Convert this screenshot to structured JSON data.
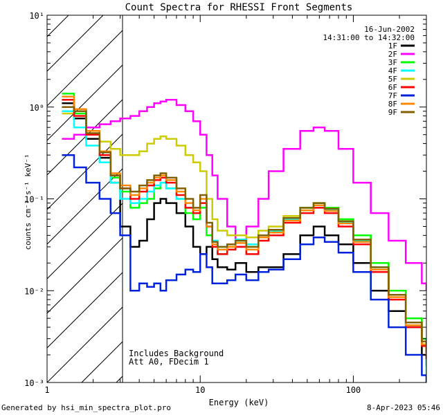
{
  "chart_data": {
    "type": "line",
    "title": "Count Spectra for RHESSI Front Segments",
    "xlabel": "Energy (keV)",
    "ylabel": "counts cm⁻² s⁻¹ keV⁻¹",
    "xscale": "log",
    "yscale": "log",
    "xlim": [
      1,
      300
    ],
    "ylim": [
      0.001,
      10
    ],
    "x_ticks": [
      1,
      10,
      100
    ],
    "x_tick_labels": [
      "1",
      "10",
      "100"
    ],
    "y_ticks": [
      0.001,
      0.01,
      0.1,
      1,
      10
    ],
    "y_tick_labels": [
      "10⁻³",
      "10⁻²",
      "10⁻¹",
      "10⁰",
      "10¹"
    ],
    "shaded_region": {
      "x_from": 1,
      "x_to": 3,
      "style": "hatched"
    },
    "legend_position": "top-right",
    "date": "16-Jun-2002",
    "time_range": "14:31:00 to 14:32:00",
    "annotations": [
      "Includes Background",
      "Att A0, FDecim 1"
    ],
    "series": [
      {
        "name": "1F",
        "color": "#000000",
        "x": [
          1.25,
          1.5,
          1.8,
          2.2,
          2.6,
          3,
          3.5,
          4,
          4.5,
          5,
          5.5,
          6,
          7,
          8,
          9,
          10,
          11,
          12,
          13,
          15,
          17,
          20,
          24,
          28,
          35,
          45,
          55,
          65,
          80,
          100,
          130,
          170,
          220,
          280,
          300
        ],
        "y": [
          1.1,
          0.75,
          0.45,
          0.28,
          0.15,
          0.05,
          0.03,
          0.035,
          0.06,
          0.09,
          0.1,
          0.09,
          0.07,
          0.05,
          0.03,
          0.025,
          0.03,
          0.022,
          0.018,
          0.017,
          0.02,
          0.016,
          0.018,
          0.018,
          0.025,
          0.04,
          0.05,
          0.04,
          0.032,
          0.02,
          0.01,
          0.006,
          0.004,
          0.002,
          0.0015
        ]
      },
      {
        "name": "2F",
        "color": "#ff00ff",
        "x": [
          1.25,
          1.5,
          1.8,
          2.2,
          2.6,
          3,
          3.5,
          4,
          4.5,
          5,
          5.5,
          6,
          7,
          8,
          9,
          10,
          11,
          12,
          13,
          15,
          17,
          20,
          24,
          28,
          35,
          45,
          55,
          65,
          80,
          100,
          130,
          170,
          220,
          280,
          300
        ],
        "y": [
          0.45,
          0.5,
          0.6,
          0.65,
          0.7,
          0.75,
          0.8,
          0.9,
          1.0,
          1.1,
          1.15,
          1.2,
          1.05,
          0.9,
          0.7,
          0.5,
          0.3,
          0.18,
          0.1,
          0.05,
          0.03,
          0.05,
          0.1,
          0.2,
          0.35,
          0.55,
          0.6,
          0.55,
          0.35,
          0.15,
          0.07,
          0.035,
          0.02,
          0.012,
          0.01
        ]
      },
      {
        "name": "3F",
        "color": "#00ff00",
        "x": [
          1.25,
          1.5,
          1.8,
          2.2,
          2.6,
          3,
          3.5,
          4,
          4.5,
          5,
          5.5,
          6,
          7,
          8,
          9,
          10,
          11,
          12,
          13,
          15,
          17,
          20,
          24,
          28,
          35,
          45,
          55,
          65,
          80,
          100,
          130,
          170,
          220,
          280,
          300
        ],
        "y": [
          1.4,
          0.85,
          0.5,
          0.3,
          0.17,
          0.12,
          0.08,
          0.09,
          0.1,
          0.13,
          0.15,
          0.13,
          0.1,
          0.07,
          0.06,
          0.08,
          0.04,
          0.03,
          0.025,
          0.03,
          0.035,
          0.03,
          0.04,
          0.045,
          0.06,
          0.08,
          0.09,
          0.08,
          0.06,
          0.04,
          0.02,
          0.01,
          0.005,
          0.003,
          0.0025
        ]
      },
      {
        "name": "4F",
        "color": "#00ffff",
        "x": [
          1.25,
          1.5,
          1.8,
          2.2,
          2.6,
          3,
          3.5,
          4,
          4.5,
          5,
          5.5,
          6,
          7,
          8,
          9,
          10,
          11,
          12,
          13,
          15,
          17,
          20,
          24,
          28,
          35,
          45,
          55,
          65,
          80,
          100,
          130,
          170,
          220,
          280,
          300
        ],
        "y": [
          0.9,
          0.6,
          0.38,
          0.25,
          0.15,
          0.1,
          0.09,
          0.1,
          0.12,
          0.14,
          0.15,
          0.13,
          0.1,
          0.08,
          0.07,
          0.09,
          0.05,
          0.035,
          0.03,
          0.032,
          0.036,
          0.032,
          0.04,
          0.045,
          0.06,
          0.075,
          0.085,
          0.075,
          0.055,
          0.035,
          0.018,
          0.009,
          0.004,
          0.0025,
          0.0012
        ]
      },
      {
        "name": "5F",
        "color": "#cccc00",
        "x": [
          1.25,
          1.5,
          1.8,
          2.2,
          2.6,
          3,
          3.5,
          4,
          4.5,
          5,
          5.5,
          6,
          7,
          8,
          9,
          10,
          11,
          12,
          13,
          15,
          17,
          20,
          24,
          28,
          35,
          45,
          55,
          65,
          80,
          100,
          130,
          170,
          220,
          280,
          300
        ],
        "y": [
          0.85,
          0.6,
          0.5,
          0.42,
          0.35,
          0.3,
          0.3,
          0.33,
          0.4,
          0.45,
          0.48,
          0.45,
          0.38,
          0.3,
          0.25,
          0.2,
          0.1,
          0.06,
          0.045,
          0.04,
          0.04,
          0.038,
          0.045,
          0.05,
          0.065,
          0.08,
          0.09,
          0.08,
          0.06,
          0.04,
          0.02,
          0.01,
          0.005,
          0.003,
          0.0022
        ]
      },
      {
        "name": "6F",
        "color": "#ff0000",
        "x": [
          1.25,
          1.5,
          1.8,
          2.2,
          2.6,
          3,
          3.5,
          4,
          4.5,
          5,
          5.5,
          6,
          7,
          8,
          9,
          10,
          11,
          12,
          13,
          15,
          17,
          20,
          24,
          28,
          35,
          45,
          55,
          65,
          80,
          100,
          130,
          170,
          220,
          280,
          300
        ],
        "y": [
          1.2,
          0.8,
          0.5,
          0.3,
          0.18,
          0.13,
          0.1,
          0.12,
          0.14,
          0.16,
          0.17,
          0.15,
          0.11,
          0.08,
          0.07,
          0.09,
          0.05,
          0.03,
          0.025,
          0.028,
          0.03,
          0.025,
          0.035,
          0.04,
          0.055,
          0.07,
          0.08,
          0.07,
          0.05,
          0.032,
          0.016,
          0.008,
          0.004,
          0.0025,
          0.0018
        ]
      },
      {
        "name": "7F",
        "color": "#0022dd",
        "x": [
          1.25,
          1.5,
          1.8,
          2.2,
          2.6,
          3,
          3.5,
          4,
          4.5,
          5,
          5.5,
          6,
          7,
          8,
          9,
          10,
          11,
          12,
          13,
          15,
          17,
          20,
          24,
          28,
          35,
          45,
          55,
          65,
          80,
          100,
          130,
          170,
          220,
          280,
          300
        ],
        "y": [
          0.3,
          0.22,
          0.15,
          0.1,
          0.07,
          0.04,
          0.01,
          0.012,
          0.011,
          0.012,
          0.01,
          0.013,
          0.015,
          0.017,
          0.016,
          0.025,
          0.018,
          0.012,
          0.012,
          0.013,
          0.015,
          0.013,
          0.016,
          0.017,
          0.022,
          0.032,
          0.038,
          0.034,
          0.026,
          0.016,
          0.008,
          0.004,
          0.002,
          0.0012,
          0.001
        ]
      },
      {
        "name": "8F",
        "color": "#ff8800",
        "x": [
          1.25,
          1.5,
          1.8,
          2.2,
          2.6,
          3,
          3.5,
          4,
          4.5,
          5,
          5.5,
          6,
          7,
          8,
          9,
          10,
          11,
          12,
          13,
          15,
          17,
          20,
          24,
          28,
          35,
          45,
          55,
          65,
          80,
          100,
          130,
          170,
          220,
          280,
          300
        ],
        "y": [
          1.3,
          0.95,
          0.55,
          0.33,
          0.19,
          0.14,
          0.11,
          0.13,
          0.15,
          0.17,
          0.18,
          0.16,
          0.12,
          0.09,
          0.075,
          0.1,
          0.05,
          0.032,
          0.028,
          0.03,
          0.033,
          0.028,
          0.038,
          0.043,
          0.058,
          0.075,
          0.085,
          0.074,
          0.054,
          0.034,
          0.017,
          0.0085,
          0.0042,
          0.0026,
          0.002
        ]
      },
      {
        "name": "9F",
        "color": "#806000",
        "x": [
          1.25,
          1.5,
          1.8,
          2.2,
          2.6,
          3,
          3.5,
          4,
          4.5,
          5,
          5.5,
          6,
          7,
          8,
          9,
          10,
          11,
          12,
          13,
          15,
          17,
          20,
          24,
          28,
          35,
          45,
          55,
          65,
          80,
          100,
          130,
          170,
          220,
          280,
          300
        ],
        "y": [
          1.0,
          0.9,
          0.52,
          0.32,
          0.18,
          0.13,
          0.12,
          0.14,
          0.16,
          0.18,
          0.19,
          0.17,
          0.13,
          0.1,
          0.08,
          0.11,
          0.055,
          0.034,
          0.03,
          0.032,
          0.035,
          0.03,
          0.04,
          0.046,
          0.062,
          0.08,
          0.09,
          0.078,
          0.057,
          0.036,
          0.018,
          0.009,
          0.0045,
          0.0028,
          0.0021
        ]
      }
    ]
  },
  "footer": {
    "generated_by": "Generated by hsi_min_spectra_plot.pro",
    "timestamp": "8-Apr-2023 05:46"
  }
}
